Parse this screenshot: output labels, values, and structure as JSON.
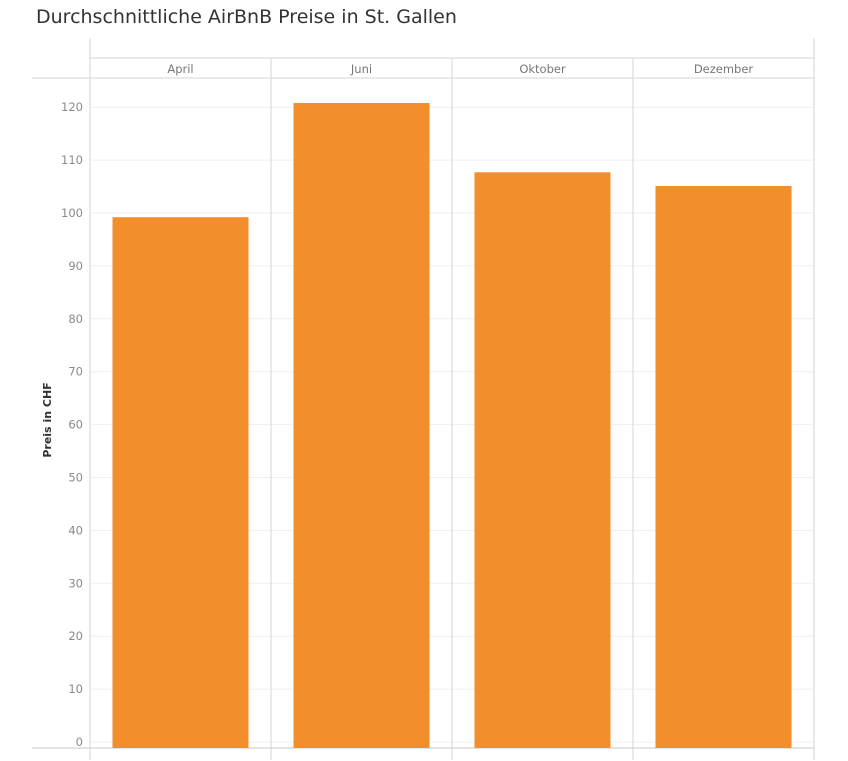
{
  "chart_data": {
    "type": "bar",
    "title": "Durchschnittliche AirBnB Preise in St. Gallen",
    "categories": [
      "April",
      "Juni",
      "Oktober",
      "Dezember"
    ],
    "values": [
      99.2,
      120.8,
      107.7,
      105.1
    ],
    "xlabel": "",
    "ylabel": "Preis in CHF",
    "ylim": [
      0,
      125
    ],
    "yticks": [
      0,
      10,
      20,
      30,
      40,
      50,
      60,
      70,
      80,
      90,
      100,
      110,
      120
    ],
    "grid": true,
    "bar_color": "#F28E2B"
  }
}
